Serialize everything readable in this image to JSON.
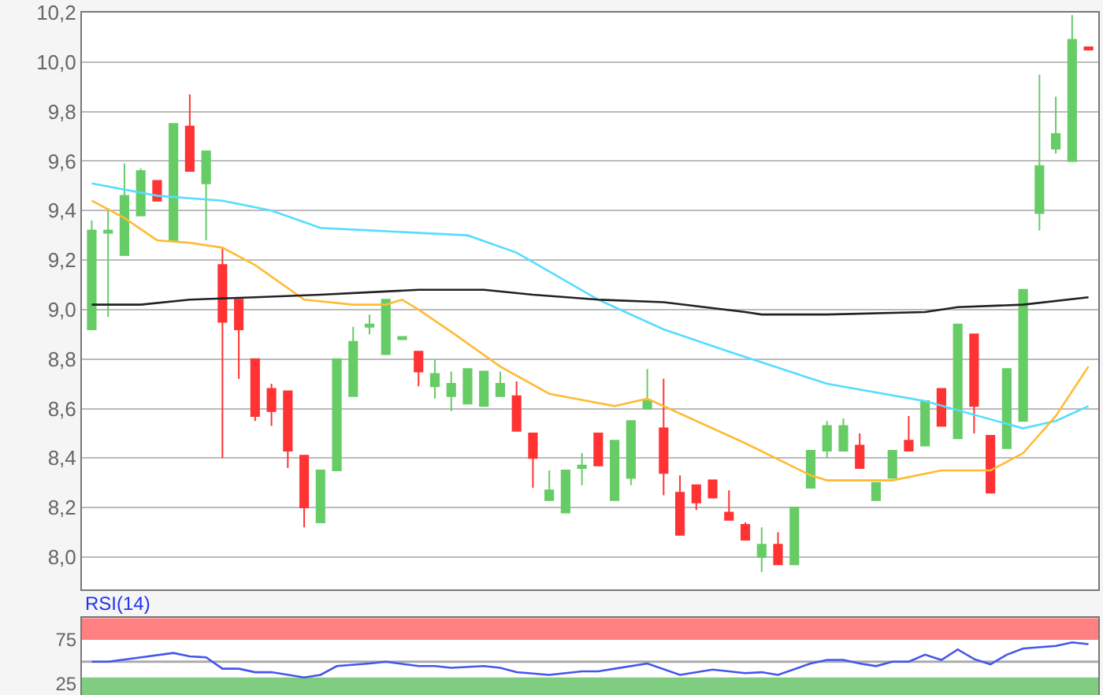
{
  "chart_data": [
    {
      "type": "candlestick",
      "categories": [
        null,
        null,
        null,
        null,
        null,
        null,
        null,
        null,
        null,
        null,
        null,
        null,
        null,
        null,
        null,
        null,
        null,
        null,
        null,
        null,
        null,
        null,
        null,
        null,
        null,
        null,
        null,
        null,
        null,
        null,
        null,
        null,
        null,
        null,
        null,
        null,
        null,
        null,
        null,
        null,
        null,
        null,
        null,
        null,
        null,
        null,
        null,
        null,
        null,
        null,
        null,
        null,
        null,
        null,
        null,
        null,
        null,
        null,
        null,
        null,
        null,
        null
      ],
      "ohlc": [
        [
          8.92,
          9.36,
          8.92,
          9.32
        ],
        [
          9.31,
          9.41,
          8.97,
          9.32
        ],
        [
          9.22,
          9.59,
          9.22,
          9.46
        ],
        [
          9.38,
          9.57,
          9.38,
          9.56
        ],
        [
          9.52,
          9.52,
          9.44,
          9.44
        ],
        [
          9.28,
          9.75,
          9.28,
          9.75
        ],
        [
          9.74,
          9.87,
          9.56,
          9.56
        ],
        [
          9.51,
          9.64,
          9.28,
          9.64
        ],
        [
          9.18,
          9.25,
          8.4,
          8.95
        ],
        [
          9.04,
          9.04,
          8.72,
          8.92
        ],
        [
          8.8,
          8.8,
          8.55,
          8.57
        ],
        [
          8.68,
          8.7,
          8.53,
          8.59
        ],
        [
          8.67,
          8.67,
          8.36,
          8.43
        ],
        [
          8.41,
          8.41,
          8.12,
          8.2
        ],
        [
          8.14,
          8.35,
          8.14,
          8.35
        ],
        [
          8.35,
          8.8,
          8.35,
          8.8
        ],
        [
          8.65,
          8.93,
          8.65,
          8.87
        ],
        [
          8.93,
          8.98,
          8.9,
          8.94
        ],
        [
          8.82,
          9.04,
          8.82,
          9.04
        ],
        [
          8.88,
          8.89,
          8.88,
          8.89
        ],
        [
          8.83,
          8.83,
          8.69,
          8.75
        ],
        [
          8.69,
          8.8,
          8.64,
          8.74
        ],
        [
          8.65,
          8.75,
          8.59,
          8.7
        ],
        [
          8.62,
          8.76,
          8.62,
          8.76
        ],
        [
          8.61,
          8.75,
          8.61,
          8.75
        ],
        [
          8.65,
          8.75,
          8.65,
          8.7
        ],
        [
          8.65,
          8.71,
          8.51,
          8.51
        ],
        [
          8.5,
          8.5,
          8.28,
          8.4
        ],
        [
          8.23,
          8.35,
          8.23,
          8.27
        ],
        [
          8.18,
          8.35,
          8.18,
          8.35
        ],
        [
          8.36,
          8.42,
          8.29,
          8.37
        ],
        [
          8.5,
          8.5,
          8.37,
          8.37
        ],
        [
          8.23,
          8.47,
          8.23,
          8.47
        ],
        [
          8.32,
          8.55,
          8.29,
          8.55
        ],
        [
          8.6,
          8.76,
          8.6,
          8.63
        ],
        [
          8.52,
          8.72,
          8.25,
          8.34
        ],
        [
          8.26,
          8.33,
          8.09,
          8.09
        ],
        [
          8.29,
          8.29,
          8.19,
          8.22
        ],
        [
          8.31,
          8.31,
          8.24,
          8.24
        ],
        [
          8.18,
          8.27,
          8.15,
          8.15
        ],
        [
          8.13,
          8.14,
          8.07,
          8.07
        ],
        [
          8.0,
          8.12,
          7.94,
          8.05
        ],
        [
          8.05,
          8.1,
          7.97,
          7.97
        ],
        [
          7.97,
          8.2,
          7.97,
          8.2
        ],
        [
          8.28,
          8.43,
          8.28,
          8.43
        ],
        [
          8.43,
          8.55,
          8.4,
          8.53
        ],
        [
          8.43,
          8.56,
          8.43,
          8.53
        ],
        [
          8.45,
          8.5,
          8.36,
          8.36
        ],
        [
          8.23,
          8.3,
          8.23,
          8.3
        ],
        [
          8.32,
          8.43,
          8.32,
          8.43
        ],
        [
          8.47,
          8.57,
          8.43,
          8.43
        ],
        [
          8.45,
          8.63,
          8.45,
          8.63
        ],
        [
          8.68,
          8.68,
          8.53,
          8.53
        ],
        [
          8.48,
          8.94,
          8.48,
          8.94
        ],
        [
          8.9,
          8.9,
          8.5,
          8.61
        ],
        [
          8.49,
          8.49,
          8.26,
          8.26
        ],
        [
          8.44,
          8.76,
          8.44,
          8.76
        ],
        [
          8.55,
          9.08,
          8.55,
          9.08
        ],
        [
          9.39,
          9.95,
          9.32,
          9.58
        ],
        [
          9.65,
          9.86,
          9.63,
          9.71
        ],
        [
          9.6,
          10.19,
          9.6,
          10.09
        ],
        [
          10.06,
          10.06,
          10.05,
          10.05
        ]
      ],
      "colors": [
        "#66cc66",
        "#66cc66",
        "#66cc66",
        "#66cc66",
        "#ff3333",
        "#66cc66",
        "#ff3333",
        "#66cc66",
        "#ff3333",
        "#ff3333",
        "#ff3333",
        "#ff3333",
        "#ff3333",
        "#ff3333",
        "#66cc66",
        "#66cc66",
        "#66cc66",
        "#66cc66",
        "#66cc66",
        "#66cc66",
        "#ff3333",
        "#66cc66",
        "#66cc66",
        "#66cc66",
        "#66cc66",
        "#66cc66",
        "#ff3333",
        "#ff3333",
        "#66cc66",
        "#66cc66",
        "#66cc66",
        "#ff3333",
        "#66cc66",
        "#66cc66",
        "#66cc66",
        "#ff3333",
        "#ff3333",
        "#ff3333",
        "#ff3333",
        "#ff3333",
        "#ff3333",
        "#66cc66",
        "#ff3333",
        "#66cc66",
        "#66cc66",
        "#66cc66",
        "#66cc66",
        "#ff3333",
        "#66cc66",
        "#66cc66",
        "#ff3333",
        "#66cc66",
        "#ff3333",
        "#66cc66",
        "#ff3333",
        "#ff3333",
        "#66cc66",
        "#66cc66",
        "#66cc66",
        "#66cc66",
        "#66cc66",
        "#ff3333"
      ],
      "series": [
        {
          "type": "line",
          "color": "#55ddff",
          "values": [
            9.51,
            null,
            null,
            null,
            9.46,
            null,
            null,
            null,
            9.44,
            null,
            null,
            9.4,
            null,
            null,
            9.33,
            null,
            null,
            9.32,
            null,
            null,
            null,
            null,
            null,
            9.3,
            null,
            null,
            9.23,
            null,
            null,
            null,
            null,
            9.04,
            null,
            null,
            null,
            8.92,
            null,
            null,
            null,
            8.83,
            null,
            null,
            null,
            null,
            null,
            8.7,
            null,
            null,
            null,
            null,
            null,
            8.63,
            null,
            null,
            null,
            null,
            null,
            8.52,
            null,
            8.55,
            null,
            8.61
          ]
        },
        {
          "type": "line",
          "color": "#ffbb33",
          "values": [
            9.44,
            null,
            9.37,
            null,
            9.28,
            null,
            9.27,
            null,
            9.25,
            null,
            9.18,
            null,
            null,
            9.04,
            null,
            null,
            9.02,
            null,
            9.02,
            9.04,
            9.0,
            null,
            8.91,
            null,
            null,
            8.77,
            null,
            null,
            8.66,
            null,
            null,
            null,
            8.61,
            null,
            8.64,
            null,
            null,
            8.55,
            null,
            null,
            8.46,
            null,
            null,
            null,
            8.33,
            8.31,
            null,
            null,
            null,
            8.31,
            null,
            null,
            8.35,
            null,
            null,
            8.35,
            null,
            8.42,
            null,
            8.57,
            null,
            8.77
          ]
        },
        {
          "type": "line",
          "color": "#222222",
          "values": [
            9.02,
            null,
            null,
            9.02,
            null,
            null,
            9.04,
            null,
            null,
            null,
            9.05,
            null,
            null,
            null,
            9.06,
            null,
            null,
            9.07,
            null,
            null,
            9.08,
            null,
            null,
            null,
            9.08,
            null,
            null,
            9.06,
            null,
            null,
            null,
            9.04,
            null,
            null,
            null,
            9.03,
            null,
            null,
            null,
            null,
            8.99,
            8.98,
            null,
            null,
            null,
            8.98,
            null,
            null,
            null,
            null,
            null,
            8.99,
            null,
            9.01,
            null,
            null,
            null,
            9.02,
            null,
            null,
            null,
            9.05
          ]
        }
      ],
      "ylim": [
        7.87,
        10.2
      ],
      "yticks": [
        {
          "value": 8.0,
          "label": "8,0"
        },
        {
          "value": 8.2,
          "label": "8,2"
        },
        {
          "value": 8.4,
          "label": "8,4"
        },
        {
          "value": 8.6,
          "label": "8,6"
        },
        {
          "value": 8.8,
          "label": "8,8"
        },
        {
          "value": 9.0,
          "label": "9,0"
        },
        {
          "value": 9.2,
          "label": "9,2"
        },
        {
          "value": 9.4,
          "label": "9,4"
        },
        {
          "value": 9.6,
          "label": "9,6"
        },
        {
          "value": 9.8,
          "label": "9,8"
        },
        {
          "value": 10.0,
          "label": "10,0"
        },
        {
          "value": 10.2,
          "label": "10,2"
        }
      ],
      "grid": "y",
      "tick_labels": "y"
    },
    {
      "type": "line",
      "title": "RSI(14)",
      "categories": [
        null,
        null,
        null,
        null,
        null,
        null,
        null,
        null,
        null,
        null,
        null,
        null,
        null,
        null,
        null,
        null,
        null,
        null,
        null,
        null,
        null,
        null,
        null,
        null,
        null,
        null,
        null,
        null,
        null,
        null,
        null,
        null,
        null,
        null,
        null,
        null,
        null,
        null,
        null,
        null,
        null,
        null,
        null,
        null,
        null,
        null,
        null,
        null,
        null,
        null,
        null,
        null,
        null,
        null,
        null,
        null,
        null,
        null,
        null,
        null,
        null,
        null
      ],
      "series": [
        {
          "color": "#4455ee",
          "values": [
            50,
            50,
            null,
            55,
            null,
            60,
            56,
            55,
            42,
            42,
            38,
            38,
            null,
            32,
            35,
            45,
            null,
            48,
            50,
            null,
            45,
            45,
            43,
            null,
            45,
            43,
            38,
            null,
            35,
            null,
            39,
            39,
            42,
            null,
            48,
            null,
            35,
            null,
            41,
            null,
            37,
            38,
            35,
            null,
            48,
            52,
            52,
            48,
            45,
            50,
            50,
            58,
            52,
            64,
            53,
            47,
            58,
            65,
            null,
            68,
            72,
            70
          ]
        }
      ],
      "ylim": [
        12,
        100
      ],
      "yticks": [
        25,
        75
      ],
      "bands": [
        {
          "axis": "y",
          "from": 75,
          "to": 100,
          "color": "#ff8080"
        },
        {
          "axis": "y",
          "from": 12,
          "to": 32,
          "color": "#80cc80"
        }
      ],
      "ref_lines": [
        {
          "axis": "y",
          "value": 50,
          "color": "#aaaaaa"
        }
      ],
      "grid": false,
      "tick_labels": "y"
    }
  ]
}
